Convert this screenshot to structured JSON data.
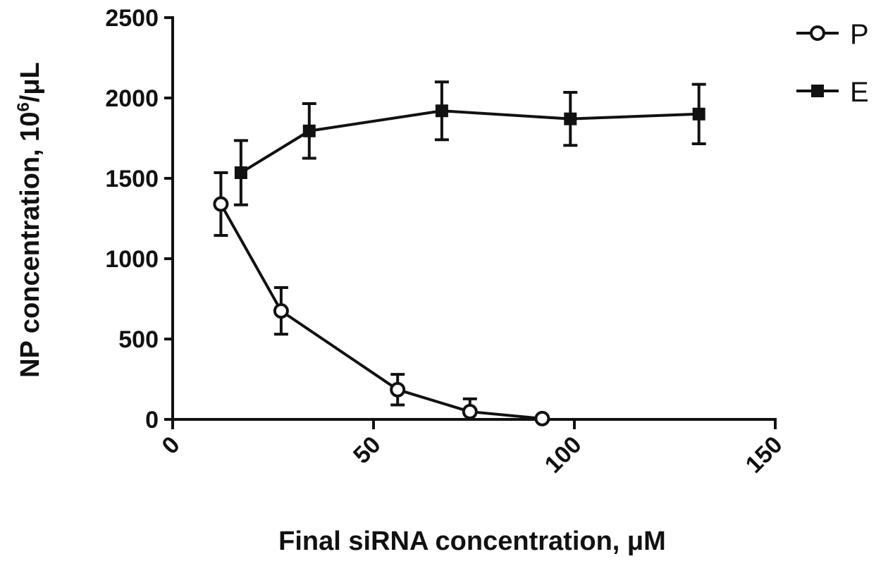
{
  "chart_data": {
    "type": "line",
    "title": "",
    "xlabel": "Final siRNA concentration, μM",
    "ylabel_prefix": "NP concentration, 10",
    "ylabel_sup": "6",
    "ylabel_suffix": "/μL",
    "xlim": [
      0,
      150
    ],
    "ylim": [
      0,
      2500
    ],
    "xticks": [
      "0",
      "50",
      "100",
      "150"
    ],
    "yticks": [
      "0",
      "500",
      "1000",
      "1500",
      "2000",
      "2500"
    ],
    "grid": false,
    "legend_position": "top-right",
    "series": [
      {
        "name": "P",
        "marker": "open-circle",
        "x": [
          12,
          27,
          56,
          74,
          92
        ],
        "y": [
          1340,
          675,
          185,
          48,
          5
        ],
        "err": [
          195,
          145,
          95,
          80,
          0
        ]
      },
      {
        "name": "E",
        "marker": "filled-square",
        "x": [
          17,
          34,
          67,
          99,
          131
        ],
        "y": [
          1535,
          1795,
          1920,
          1870,
          1900
        ],
        "err": [
          200,
          170,
          180,
          165,
          185
        ]
      }
    ]
  }
}
